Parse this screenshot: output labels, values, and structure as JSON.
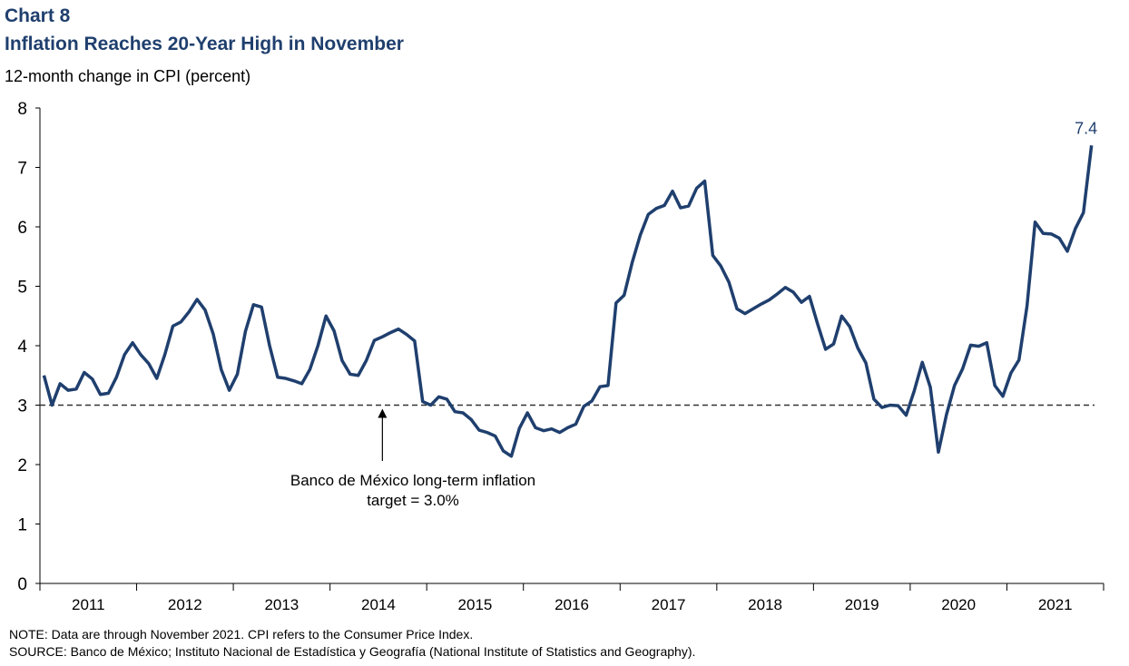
{
  "header": {
    "chart_number": "Chart 8",
    "title": "Inflation Reaches 20-Year High in November",
    "units": "12-month change in CPI (percent)"
  },
  "footer": {
    "note": "NOTE:  Data are through November  2021. CPI refers to the Consumer Price Index.",
    "source": "SOURCE:  Banco de México; Instituto Nacional de Estadística y Geografía (National Institute of Statistics and Geography)."
  },
  "colors": {
    "line": "#1f3f6e",
    "title": "#1f3f6e",
    "reference": "#333333"
  },
  "chart_data": {
    "type": "line",
    "x_unit": "month",
    "x_start": "2011-01",
    "x_end": "2021-11",
    "ylabel": "12-month change in CPI (percent)",
    "ylim": [
      0,
      8
    ],
    "yticks": [
      "0",
      "1",
      "2",
      "3",
      "4",
      "5",
      "6",
      "7",
      "8"
    ],
    "xtick_labels": [
      "2011",
      "2012",
      "2013",
      "2014",
      "2015",
      "2016",
      "2017",
      "2018",
      "2019",
      "2020",
      "2021"
    ],
    "grid": false,
    "series": [
      {
        "values": [
          3.5,
          3.0,
          3.36,
          3.25,
          3.27,
          3.55,
          3.44,
          3.18,
          3.2,
          3.47,
          3.85,
          4.05,
          3.85,
          3.7,
          3.45,
          3.85,
          4.33,
          4.4,
          4.57,
          4.78,
          4.6,
          4.2,
          3.6,
          3.25,
          3.52,
          4.24,
          4.69,
          4.65,
          4.0,
          3.47,
          3.45,
          3.41,
          3.36,
          3.6,
          4.0,
          4.5,
          4.25,
          3.75,
          3.52,
          3.5,
          3.75,
          4.09,
          4.15,
          4.22,
          4.28,
          4.19,
          4.08,
          3.06,
          3.0,
          3.14,
          3.1,
          2.89,
          2.87,
          2.76,
          2.58,
          2.54,
          2.48,
          2.23,
          2.14,
          2.61,
          2.87,
          2.62,
          2.57,
          2.6,
          2.54,
          2.62,
          2.68,
          2.98,
          3.07,
          3.31,
          3.33,
          4.72,
          4.85,
          5.4,
          5.86,
          6.21,
          6.31,
          6.36,
          6.6,
          6.32,
          6.35,
          6.65,
          6.77,
          5.52,
          5.34,
          5.07,
          4.62,
          4.54,
          4.62,
          4.7,
          4.77,
          4.87,
          4.98,
          4.9,
          4.73,
          4.83,
          4.37,
          3.94,
          4.03,
          4.5,
          4.32,
          3.96,
          3.71,
          3.1,
          2.96,
          3.0,
          2.99,
          2.83,
          3.24,
          3.72,
          3.3,
          2.21,
          2.84,
          3.33,
          3.61,
          4.01,
          3.99,
          4.05,
          3.33,
          3.15,
          3.54,
          3.76,
          4.67,
          6.08,
          5.89,
          5.88,
          5.81,
          5.59,
          5.97,
          6.24,
          7.37
        ]
      }
    ],
    "reference_line": {
      "value": 3.0,
      "style": "dashed"
    },
    "annotations": [
      {
        "text_line1": "Banco de México long-term inflation",
        "text_line2": "target = 3.0%",
        "arrow_x": "2014-07",
        "arrow_to_y": 3.0
      },
      {
        "text": "7.4",
        "x": "2021-11",
        "y": 7.37
      }
    ]
  }
}
